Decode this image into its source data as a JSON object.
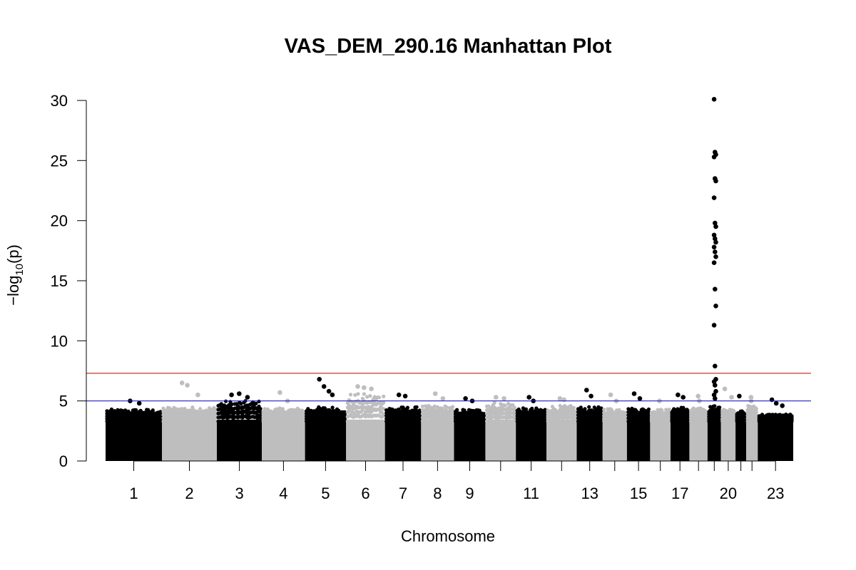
{
  "chart_data": {
    "type": "scatter",
    "title": "VAS_DEM_290.16 Manhattan Plot",
    "xlabel": "Chromosome",
    "ylabel_parts": {
      "prefix": "−log",
      "sub": "10",
      "suffix": "(p)"
    },
    "ylim": [
      0,
      30
    ],
    "yticks": [
      0,
      5,
      10,
      15,
      20,
      25,
      30
    ],
    "threshold_lines": [
      {
        "value": 7.3,
        "color": "#c0392b"
      },
      {
        "value": 5.0,
        "color": "#2020c0"
      }
    ],
    "colors": {
      "odd": "#000000",
      "even": "#bebebe"
    },
    "chromosomes": [
      {
        "chr": "1",
        "label": "1",
        "length": 248,
        "base": 4.3,
        "peaks": [
          5.0,
          4.8
        ]
      },
      {
        "chr": "2",
        "label": "2",
        "length": 242,
        "base": 4.5,
        "peaks": [
          6.5,
          6.3,
          5.5
        ]
      },
      {
        "chr": "3",
        "label": "3",
        "length": 198,
        "base": 5.0,
        "peaks": [
          5.5,
          5.6,
          5.3
        ]
      },
      {
        "chr": "4",
        "label": "4",
        "length": 190,
        "base": 4.4,
        "peaks": [
          5.7,
          5.0
        ]
      },
      {
        "chr": "5",
        "label": "5",
        "length": 181,
        "base": 4.5,
        "peaks": [
          6.8,
          6.2,
          5.8,
          5.5
        ]
      },
      {
        "chr": "6",
        "label": "6",
        "length": 171,
        "base": 5.6,
        "peaks": [
          6.2,
          6.1,
          6.0
        ]
      },
      {
        "chr": "7",
        "label": "7",
        "length": 159,
        "base": 4.5,
        "peaks": [
          5.5,
          5.4
        ]
      },
      {
        "chr": "8",
        "label": "8",
        "length": 145,
        "base": 4.6,
        "peaks": [
          5.6,
          5.2
        ]
      },
      {
        "chr": "9",
        "label": "9",
        "length": 138,
        "base": 4.3,
        "peaks": [
          5.2,
          5.0
        ]
      },
      {
        "chr": "10",
        "label": "",
        "length": 134,
        "base": 4.9,
        "peaks": [
          5.3,
          5.2
        ]
      },
      {
        "chr": "11",
        "label": "11",
        "length": 135,
        "base": 4.4,
        "peaks": [
          5.3,
          5.0
        ]
      },
      {
        "chr": "12",
        "label": "",
        "length": 133,
        "base": 4.6,
        "peaks": [
          5.2,
          5.1
        ]
      },
      {
        "chr": "13",
        "label": "13",
        "length": 114,
        "base": 4.5,
        "peaks": [
          5.9,
          5.4
        ]
      },
      {
        "chr": "14",
        "label": "",
        "length": 107,
        "base": 4.4,
        "peaks": [
          5.5,
          5.0
        ]
      },
      {
        "chr": "15",
        "label": "15",
        "length": 102,
        "base": 4.4,
        "peaks": [
          5.6,
          5.2
        ]
      },
      {
        "chr": "16",
        "label": "",
        "length": 90,
        "base": 4.3,
        "peaks": [
          5.0
        ]
      },
      {
        "chr": "17",
        "label": "17",
        "length": 83,
        "base": 4.5,
        "peaks": [
          5.5,
          5.3
        ]
      },
      {
        "chr": "18",
        "label": "",
        "length": 80,
        "base": 4.4,
        "peaks": [
          5.4,
          5.0
        ]
      },
      {
        "chr": "19",
        "label": "",
        "length": 59,
        "base": 4.6,
        "peaks": [
          30.1,
          25.7,
          25.5,
          25.3,
          23.5,
          23.3,
          21.9,
          19.8,
          19.5,
          18.8,
          18.5,
          18.2,
          17.8,
          17.4,
          17.0,
          16.5,
          14.3,
          12.9,
          11.3,
          7.9,
          6.8,
          6.6,
          6.3,
          5.8,
          5.5,
          5.2
        ]
      },
      {
        "chr": "20",
        "label": "20",
        "length": 64,
        "base": 4.3,
        "peaks": [
          6.0,
          5.3
        ]
      },
      {
        "chr": "21",
        "label": "",
        "length": 47,
        "base": 4.2,
        "peaks": [
          5.4
        ]
      },
      {
        "chr": "22",
        "label": "",
        "length": 51,
        "base": 4.6,
        "peaks": [
          5.3,
          5.0
        ]
      },
      {
        "chr": "23",
        "label": "23",
        "length": 156,
        "base": 3.9,
        "peaks": [
          5.1,
          4.8,
          4.6
        ]
      }
    ]
  }
}
